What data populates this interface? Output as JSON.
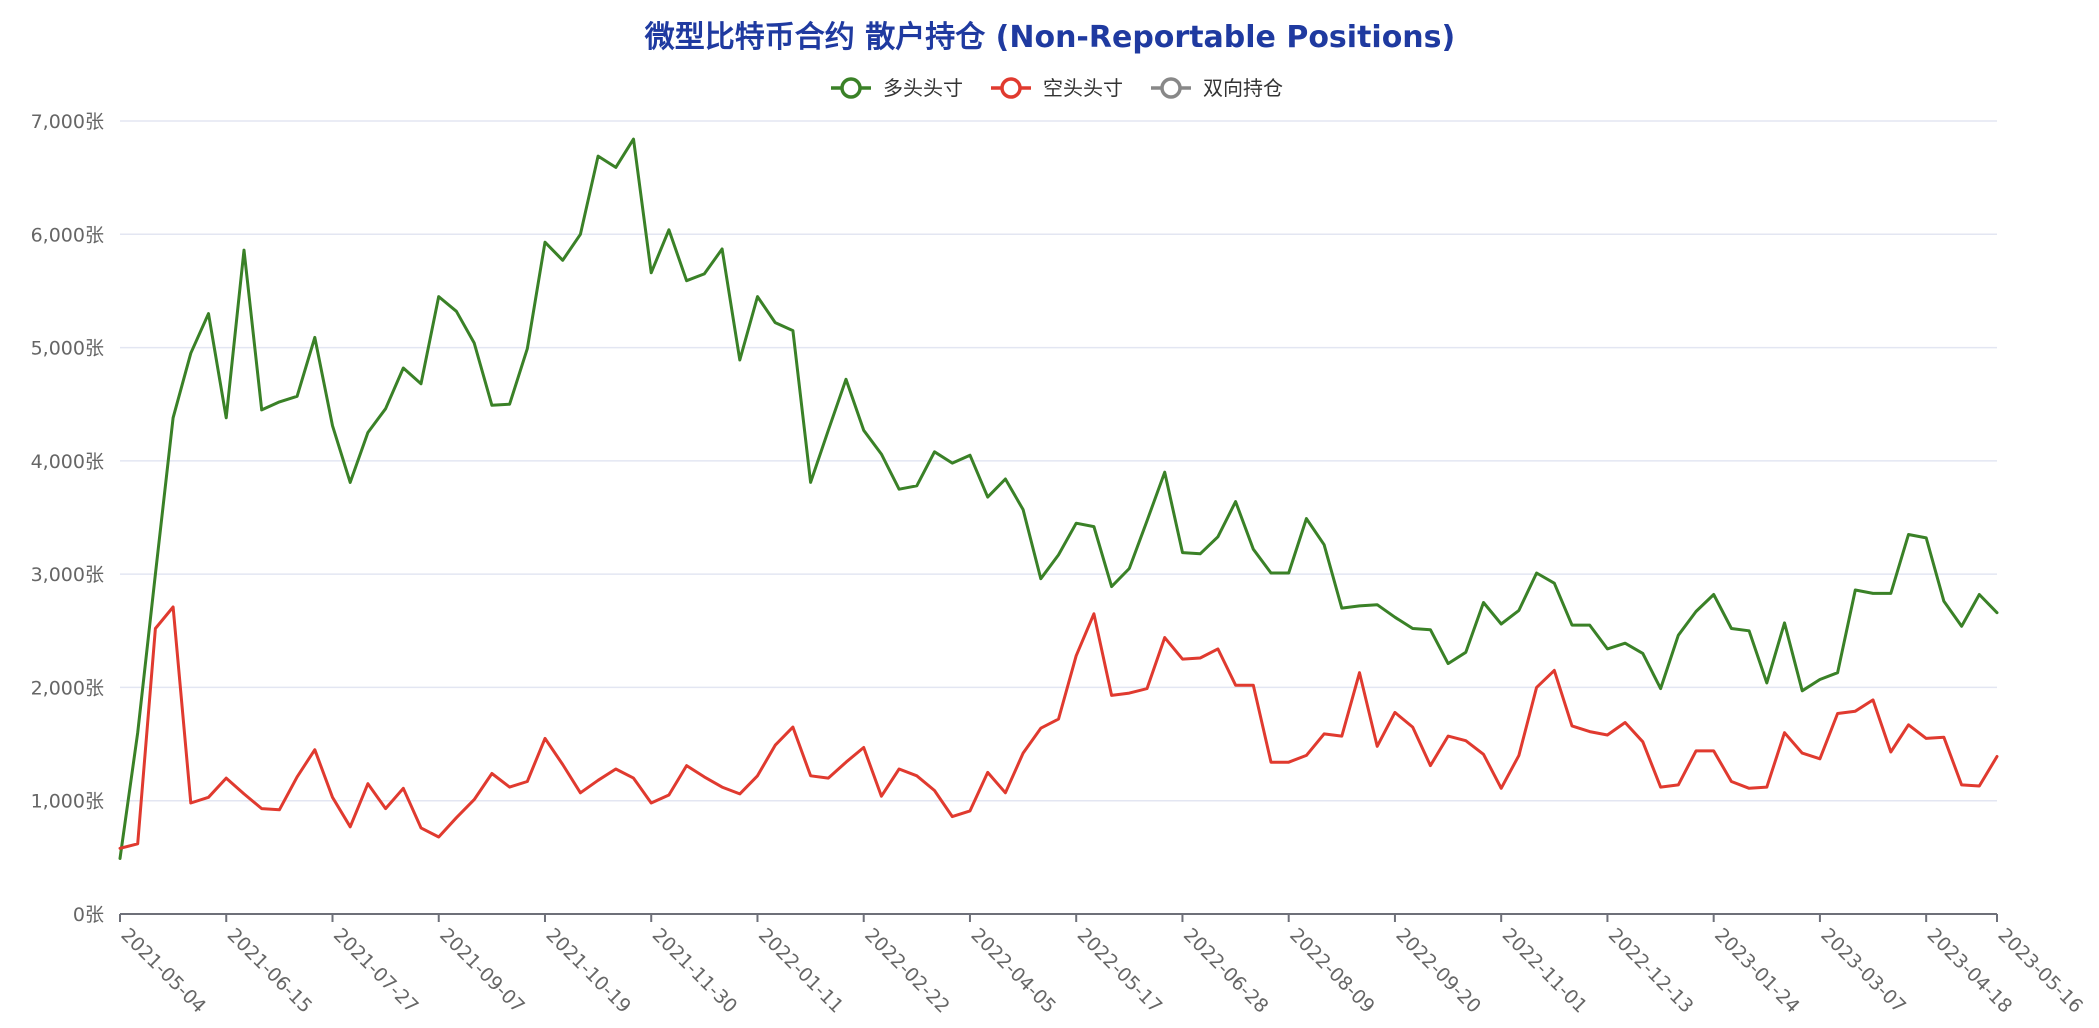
{
  "colors": {
    "title": "#1f3aa0",
    "long": "#3a8127",
    "short": "#e03a2f",
    "spreading": "#888888",
    "grid": "#e3e6f2",
    "axis": "#6e7079"
  },
  "chart_data": {
    "type": "line",
    "title": "微型比特币合约 散户持仓 (Non-Reportable Positions)",
    "legend": [
      {
        "name": "多头头寸",
        "color": "#3a8127"
      },
      {
        "name": "空头头寸",
        "color": "#e03a2f"
      },
      {
        "name": "双向持仓",
        "color": "#888888"
      }
    ],
    "legend_position": "top-center",
    "y_unit": "张",
    "ylim": [
      0,
      7000
    ],
    "y_ticks": [
      "0张",
      "1,000张",
      "2,000张",
      "3,000张",
      "4,000张",
      "5,000张",
      "6,000张",
      "7,000张"
    ],
    "x_ticks": [
      "2021-05-04",
      "2021-06-15",
      "2021-07-27",
      "2021-09-07",
      "2021-10-19",
      "2021-11-30",
      "2022-01-11",
      "2022-02-22",
      "2022-04-05",
      "2022-05-17",
      "2022-06-28",
      "2022-08-09",
      "2022-09-20",
      "2022-11-01",
      "2022-12-13",
      "2023-01-24",
      "2023-03-07",
      "2023-04-18",
      "2023-05-16"
    ],
    "x_start": "2021-05-04",
    "x_end": "2023-05-16",
    "grid": true,
    "series": [
      {
        "name": "多头头寸",
        "values": [
          490,
          1600,
          3000,
          4380,
          4950,
          5300,
          4380,
          5860,
          4450,
          4520,
          4570,
          5090,
          4310,
          3810,
          4250,
          4460,
          4820,
          4680,
          5450,
          5320,
          5040,
          4490,
          4500,
          4990,
          5930,
          5770,
          6000,
          6690,
          6590,
          6840,
          5660,
          6040,
          5590,
          5650,
          5870,
          4890,
          5450,
          5220,
          5150,
          3810,
          4270,
          4720,
          4270,
          4060,
          3750,
          3780,
          4080,
          3980,
          4050,
          3680,
          3840,
          3570,
          2960,
          3170,
          3450,
          3420,
          2890,
          3050,
          3470,
          3900,
          3190,
          3180,
          3330,
          3640,
          3220,
          3010,
          3010,
          3490,
          3260,
          2700,
          2720,
          2730,
          2620,
          2520,
          2510,
          2210,
          2310,
          2750,
          2560,
          2680,
          3010,
          2920,
          2550,
          2550,
          2340,
          2390,
          2300,
          1990,
          2460,
          2670,
          2820,
          2520,
          2500,
          2040,
          2570,
          1970,
          2070,
          2130,
          2860,
          2830,
          2830,
          3350,
          3320,
          2760,
          2540,
          2820,
          2660
        ]
      },
      {
        "name": "空头头寸",
        "values": [
          580,
          620,
          2520,
          2710,
          980,
          1030,
          1200,
          1060,
          930,
          920,
          1210,
          1450,
          1030,
          770,
          1150,
          930,
          1110,
          760,
          680,
          850,
          1010,
          1240,
          1120,
          1170,
          1550,
          1320,
          1070,
          1180,
          1280,
          1200,
          980,
          1050,
          1310,
          1210,
          1120,
          1060,
          1220,
          1490,
          1650,
          1220,
          1200,
          1340,
          1470,
          1040,
          1280,
          1220,
          1090,
          860,
          910,
          1250,
          1070,
          1420,
          1640,
          1720,
          2280,
          2650,
          1930,
          1950,
          1990,
          2440,
          2250,
          2260,
          2340,
          2020,
          2020,
          1340,
          1340,
          1400,
          1590,
          1570,
          2130,
          1480,
          1780,
          1650,
          1310,
          1570,
          1530,
          1410,
          1110,
          1400,
          2000,
          2150,
          1660,
          1610,
          1580,
          1690,
          1520,
          1120,
          1140,
          1440,
          1440,
          1170,
          1110,
          1120,
          1600,
          1420,
          1370,
          1770,
          1790,
          1890,
          1430,
          1670,
          1550,
          1560,
          1140,
          1130,
          1390
        ]
      },
      {
        "name": "双向持仓",
        "values": []
      }
    ]
  }
}
